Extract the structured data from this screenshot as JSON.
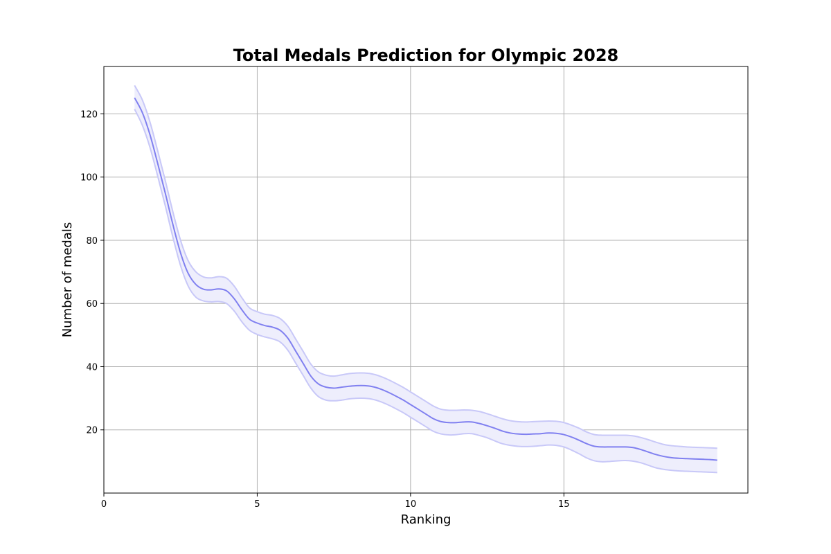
{
  "chart_data": {
    "type": "line",
    "title": "Total Medals Prediction for Olympic 2028",
    "xlabel": "Ranking",
    "ylabel": "Number of medals",
    "xlim": [
      0,
      21
    ],
    "ylim": [
      0,
      135
    ],
    "x_ticks": [
      0,
      5,
      10,
      15
    ],
    "y_ticks": [
      20,
      40,
      60,
      80,
      100,
      120
    ],
    "grid": true,
    "legend": "none",
    "colors": {
      "line": "#8080f0",
      "band_fill": "#eeeefc",
      "band_edge": "#c8c8f8"
    },
    "series": [
      {
        "x": [
          1,
          1.25,
          1.5,
          1.75,
          2,
          2.25,
          2.5,
          2.75,
          3,
          3.25,
          3.5,
          3.75,
          4,
          4.25,
          4.5,
          4.75,
          5,
          5.25,
          5.5,
          5.75,
          6,
          6.25,
          6.5,
          6.75,
          7,
          7.25,
          7.5,
          7.75,
          8,
          8.25,
          8.5,
          8.75,
          9,
          9.25,
          9.5,
          9.75,
          10,
          10.25,
          10.5,
          10.75,
          11,
          11.25,
          11.5,
          11.75,
          12,
          12.25,
          12.5,
          12.75,
          13,
          13.25,
          13.5,
          13.75,
          14,
          14.25,
          14.5,
          14.75,
          15,
          15.25,
          15.5,
          15.75,
          16,
          16.25,
          16.5,
          16.75,
          17,
          17.25,
          17.5,
          17.75,
          18,
          18.25,
          18.5,
          18.75,
          19,
          19.25,
          19.5,
          19.75,
          20
        ],
        "y": [
          125.1,
          120.5,
          113.5,
          104.5,
          95,
          85,
          76,
          69.5,
          66,
          64.5,
          64.3,
          64.6,
          64,
          61.5,
          58,
          55,
          53.8,
          53,
          52.5,
          51.5,
          49,
          45,
          41,
          37,
          34.5,
          33.5,
          33.2,
          33.5,
          33.8,
          34,
          34,
          33.7,
          33,
          32,
          30.8,
          29.5,
          28,
          26.5,
          25,
          23.5,
          22.6,
          22.3,
          22.3,
          22.5,
          22.5,
          22,
          21.3,
          20.5,
          19.6,
          19,
          18.7,
          18.6,
          18.7,
          18.8,
          19,
          18.9,
          18.5,
          17.7,
          16.7,
          15.6,
          14.8,
          14.6,
          14.6,
          14.6,
          14.6,
          14.4,
          13.8,
          13,
          12.2,
          11.6,
          11.2,
          11,
          10.9,
          10.8,
          10.7,
          10.6,
          10.4
        ],
        "lower": [
          121.5,
          116.5,
          109.5,
          100.5,
          91,
          81,
          72,
          65.5,
          62,
          60.8,
          60.5,
          60.6,
          60,
          57.6,
          54.2,
          51.5,
          50.2,
          49.4,
          48.8,
          47.8,
          45.2,
          41.2,
          37.2,
          33.2,
          30.5,
          29.4,
          29.2,
          29.4,
          29.8,
          30,
          30,
          29.7,
          29,
          28,
          26.8,
          25.5,
          24,
          22.5,
          21,
          19.5,
          18.7,
          18.4,
          18.5,
          18.8,
          18.8,
          18.2,
          17.5,
          16.5,
          15.6,
          15.1,
          14.8,
          14.7,
          14.8,
          15,
          15.2,
          15.1,
          14.6,
          13.6,
          12.4,
          11.1,
          10.2,
          9.9,
          10,
          10.2,
          10.3,
          10.1,
          9.6,
          8.8,
          8,
          7.5,
          7.2,
          7,
          6.9,
          6.8,
          6.7,
          6.6,
          6.5
        ],
        "upper": [
          129,
          124.5,
          117.5,
          108.5,
          99,
          89,
          80,
          73.5,
          70,
          68.4,
          68.1,
          68.5,
          68,
          65.5,
          61.8,
          58.6,
          57.4,
          56.6,
          56.2,
          55.2,
          52.8,
          48.8,
          44.8,
          40.8,
          38.3,
          37.3,
          37,
          37.4,
          37.8,
          38,
          38,
          37.7,
          37,
          36,
          34.8,
          33.5,
          32,
          30.5,
          29,
          27.5,
          26.5,
          26.2,
          26.2,
          26.3,
          26.2,
          25.8,
          25.1,
          24.3,
          23.5,
          22.9,
          22.6,
          22.5,
          22.6,
          22.7,
          22.8,
          22.7,
          22.3,
          21.5,
          20.5,
          19.3,
          18.5,
          18.3,
          18.3,
          18.3,
          18.3,
          18.1,
          17.6,
          16.9,
          16.1,
          15.4,
          15,
          14.8,
          14.6,
          14.5,
          14.4,
          14.3,
          14.2
        ]
      }
    ]
  }
}
